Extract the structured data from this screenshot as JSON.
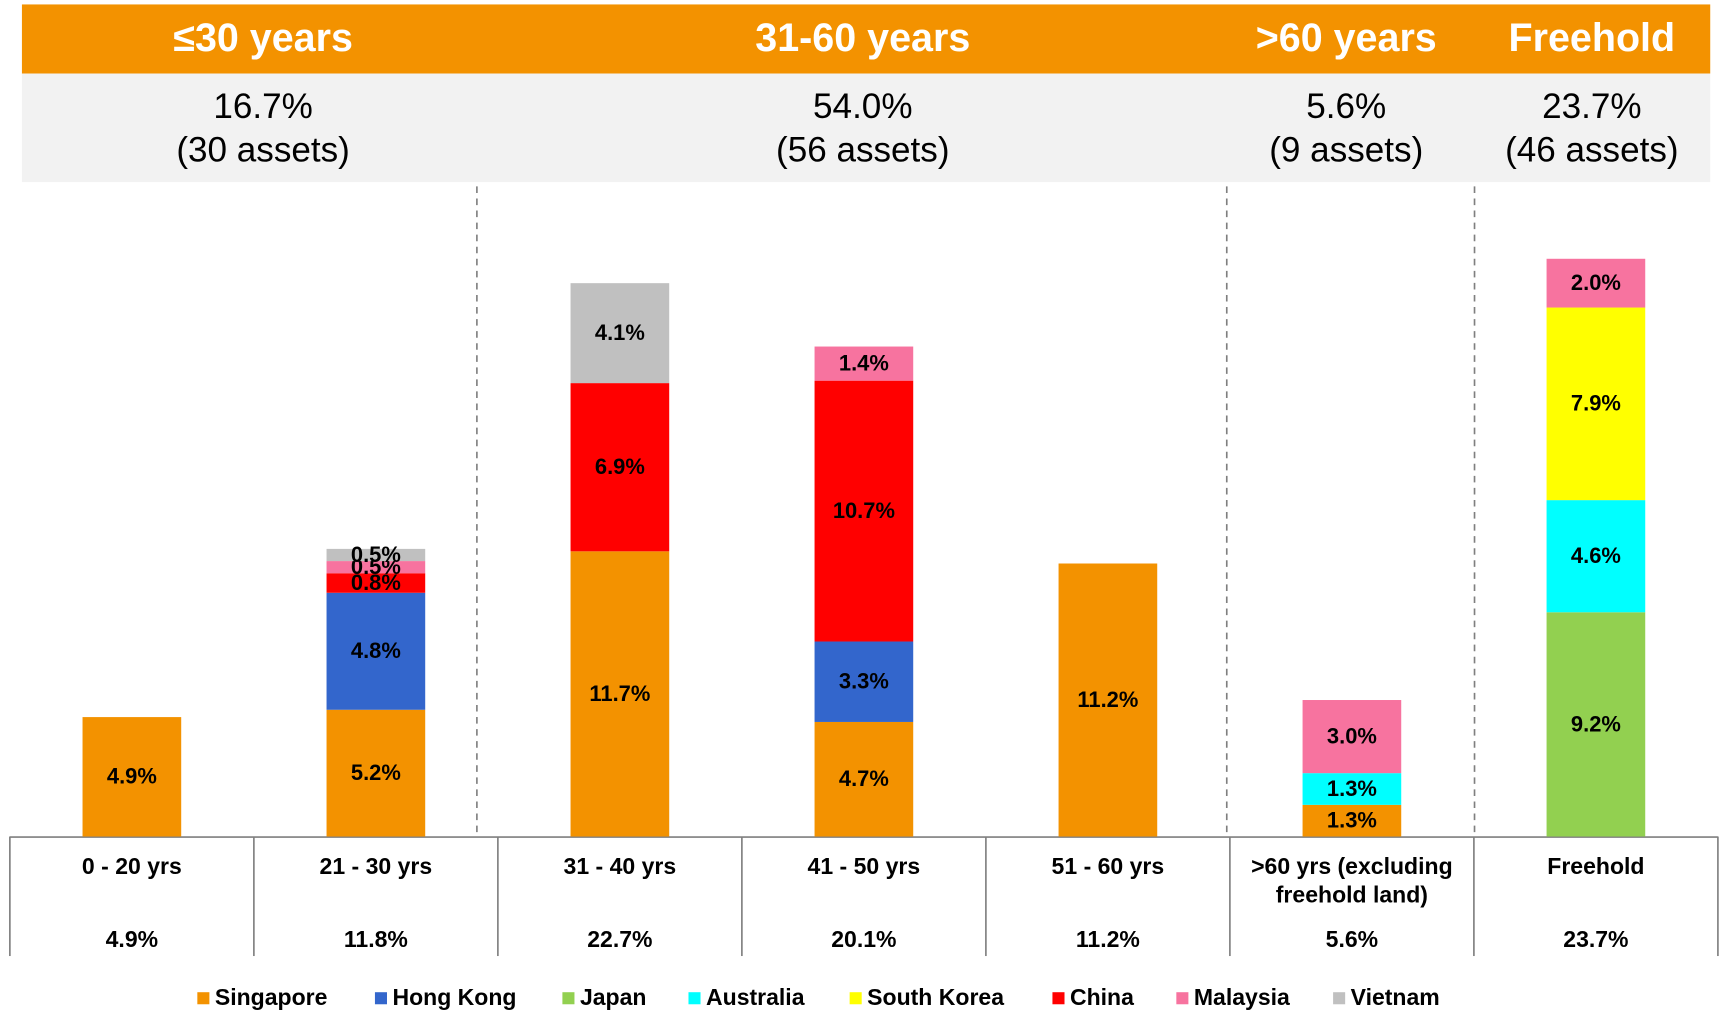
{
  "chart_data": {
    "type": "bar",
    "stacked": true,
    "groups": [
      {
        "title": "≤30 years",
        "value": 16.7,
        "value_label": "16.7%",
        "assets": "(30 assets)"
      },
      {
        "title": "31-60 years",
        "value": 54.0,
        "value_label": "54.0%",
        "assets": "(56 assets)"
      },
      {
        "title": ">60 years",
        "value": 5.6,
        "value_label": "5.6%",
        "assets": "(9 assets)"
      },
      {
        "title": "Freehold",
        "value": 23.7,
        "value_label": "23.7%",
        "assets": "(46 assets)"
      }
    ],
    "categories": [
      "0 - 20 yrs",
      "21 - 30 yrs",
      "31 - 40 yrs",
      "41 - 50 yrs",
      "51 - 60 yrs",
      ">60 yrs (excluding freehold land)",
      "Freehold"
    ],
    "totals": [
      4.9,
      11.8,
      22.7,
      20.1,
      11.2,
      5.6,
      23.7
    ],
    "total_labels": [
      "4.9%",
      "11.8%",
      "22.7%",
      "20.1%",
      "11.2%",
      "5.6%",
      "23.7%"
    ],
    "series": [
      {
        "name": "Singapore",
        "color": "#f39200",
        "values": [
          4.9,
          5.2,
          11.7,
          4.7,
          11.2,
          1.3,
          null
        ],
        "value_labels": [
          "4.9%",
          "5.2%",
          "11.7%",
          "4.7%",
          "11.2%",
          "1.3%",
          null
        ]
      },
      {
        "name": "Hong Kong",
        "color": "#3366cc",
        "values": [
          null,
          4.8,
          null,
          3.3,
          null,
          null,
          null
        ],
        "value_labels": [
          null,
          "4.8%",
          null,
          "3.3%",
          null,
          null,
          null
        ]
      },
      {
        "name": "Japan",
        "color": "#92d050",
        "values": [
          null,
          null,
          null,
          null,
          null,
          null,
          9.2
        ],
        "value_labels": [
          null,
          null,
          null,
          null,
          null,
          null,
          "9.2%"
        ]
      },
      {
        "name": "Australia",
        "color": "#00ffff",
        "values": [
          null,
          null,
          null,
          null,
          null,
          1.3,
          4.6
        ],
        "value_labels": [
          null,
          null,
          null,
          null,
          null,
          "1.3%",
          "4.6%"
        ]
      },
      {
        "name": "South Korea",
        "color": "#ffff00",
        "values": [
          null,
          null,
          null,
          null,
          null,
          null,
          7.9
        ],
        "value_labels": [
          null,
          null,
          null,
          null,
          null,
          null,
          "7.9%"
        ]
      },
      {
        "name": "China",
        "color": "#ff0000",
        "values": [
          null,
          0.8,
          6.9,
          10.7,
          null,
          null,
          null
        ],
        "value_labels": [
          null,
          "0.8%",
          "6.9%",
          "10.7%",
          null,
          null,
          null
        ]
      },
      {
        "name": "Malaysia",
        "color": "#f7739f",
        "values": [
          null,
          0.5,
          null,
          1.4,
          null,
          3.0,
          2.0
        ],
        "value_labels": [
          null,
          "0.5%",
          null,
          "1.4%",
          null,
          "3.0%",
          "2.0%"
        ]
      },
      {
        "name": "Vietnam",
        "color": "#c0c0c0",
        "values": [
          null,
          0.5,
          4.1,
          null,
          null,
          null,
          null
        ],
        "value_labels": [
          null,
          "0.5%",
          "4.1%",
          null,
          null,
          null,
          null
        ]
      }
    ]
  }
}
